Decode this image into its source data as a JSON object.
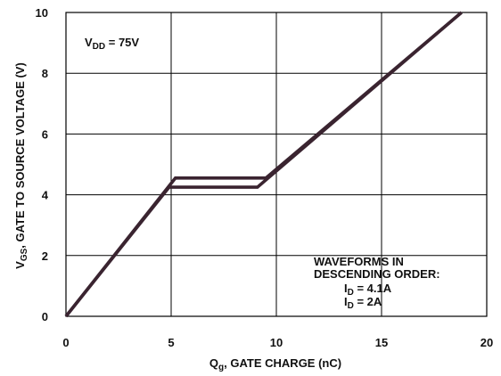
{
  "chart_data": {
    "type": "line",
    "xlabel": {
      "main": "Q",
      "sub": "g",
      "rest": ", GATE CHARGE (nC)"
    },
    "ylabel": {
      "main": "V",
      "sub": "GS",
      "rest": ", GATE TO SOURCE VOLTAGE (V)"
    },
    "xlim": [
      0,
      20
    ],
    "ylim": [
      0,
      10
    ],
    "x_ticks": [
      "0",
      "5",
      "10",
      "15",
      "20"
    ],
    "y_ticks": [
      "0",
      "2",
      "4",
      "6",
      "8",
      "10"
    ],
    "grid": true,
    "annotation_vdd": {
      "main": "V",
      "sub": "DD",
      "rest": " = 75V"
    },
    "legend_heading": [
      "WAVEFORMS IN",
      "DESCENDING ORDER:"
    ],
    "legend_entries": [
      {
        "main": "I",
        "sub": "D",
        "rest": " = 4.1A"
      },
      {
        "main": "I",
        "sub": "D",
        "rest": " = 2A"
      }
    ],
    "series": [
      {
        "values": [
          [
            0,
            0
          ],
          [
            5.2,
            4.55
          ],
          [
            9.5,
            4.55
          ],
          [
            18.8,
            10
          ]
        ]
      },
      {
        "values": [
          [
            0,
            0
          ],
          [
            4.9,
            4.25
          ],
          [
            9.1,
            4.25
          ],
          [
            18.8,
            10
          ]
        ]
      }
    ],
    "line_color": "#3a2430"
  }
}
